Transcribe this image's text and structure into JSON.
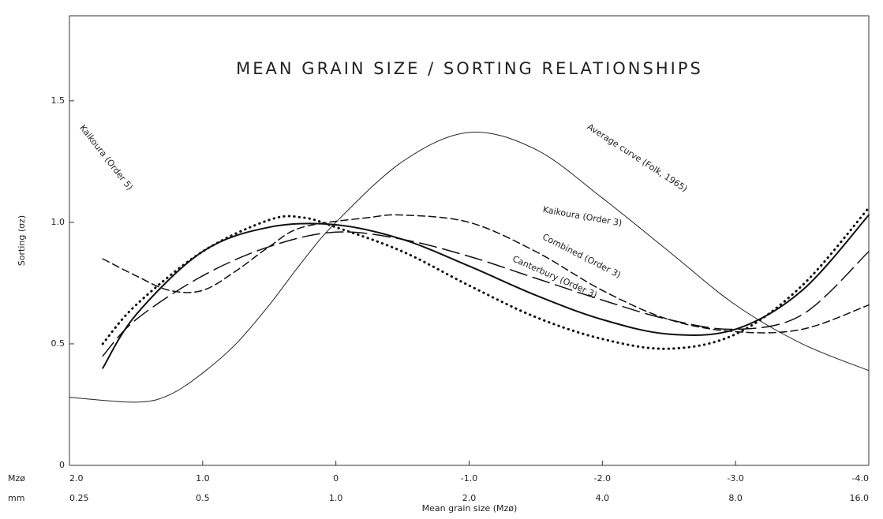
{
  "chart_data": {
    "type": "line",
    "title": "MEAN GRAIN SIZE / SORTING RELATIONSHIPS",
    "xlabel": "Mean grain size (Mzø)",
    "ylabel": "Sorting (σz)",
    "x_row_label": "Mzø",
    "mm_row_label": "mm",
    "mm_labels": [
      "0.25",
      "0.5",
      "1.0",
      "2.0",
      "4.0",
      "8.0",
      "16.0"
    ],
    "xlim": [
      2.0,
      -4.0
    ],
    "xticks": [
      {
        "value": 2,
        "label": "2.0"
      },
      {
        "value": 1,
        "label": "1.0"
      },
      0,
      {
        "value": -1,
        "label": "-1.0"
      },
      {
        "value": -2,
        "label": "-2.0"
      },
      {
        "value": -3,
        "label": "-3.0"
      },
      {
        "value": -4,
        "label": "-4.0"
      }
    ],
    "ylim": [
      0,
      1.85
    ],
    "yticks": [
      0,
      {
        "value": 0.5,
        "label": "0.5"
      },
      {
        "value": 1,
        "label": "1.0"
      },
      {
        "value": 1.5,
        "label": "1.5"
      }
    ],
    "grid": false,
    "series": [
      {
        "name": "Average curve (Folk, 1965)",
        "color": "#222",
        "style": "solid",
        "width": 1,
        "x": [
          2.0,
          1.5,
          1.25,
          1.0,
          0.75,
          0.5,
          0.25,
          0,
          -0.5,
          -1.0,
          -1.5,
          -2.0,
          -2.5,
          -3.0,
          -3.5,
          -4.0
        ],
        "values": [
          0.28,
          0.26,
          0.29,
          0.38,
          0.5,
          0.66,
          0.84,
          1.0,
          1.25,
          1.37,
          1.3,
          1.1,
          0.88,
          0.66,
          0.5,
          0.39
        ]
      },
      {
        "name": "Combined (Order 3)",
        "color": "#111",
        "style": "solid",
        "width": 2,
        "x": [
          1.75,
          1.5,
          1.0,
          0.5,
          0,
          -0.5,
          -1.0,
          -1.5,
          -2.0,
          -2.5,
          -3.0,
          -3.5,
          -4.0
        ],
        "values": [
          0.4,
          0.62,
          0.88,
          0.98,
          0.99,
          0.93,
          0.82,
          0.7,
          0.6,
          0.54,
          0.56,
          0.72,
          1.03
        ]
      },
      {
        "name": "Canterbury (Order 3)",
        "color": "#111",
        "style": "dotted",
        "width": 3,
        "x": [
          1.75,
          1.5,
          1.0,
          0.5,
          0.25,
          0,
          -0.5,
          -1.0,
          -1.5,
          -2.0,
          -2.5,
          -3.0,
          -3.5,
          -4.0
        ],
        "values": [
          0.5,
          0.66,
          0.88,
          1.01,
          1.02,
          0.98,
          0.88,
          0.74,
          0.61,
          0.52,
          0.48,
          0.54,
          0.74,
          1.06
        ]
      },
      {
        "name": "Kaikoura (Order 3)",
        "color": "#111",
        "style": "longdash",
        "width": 1.5,
        "x": [
          1.75,
          1.5,
          1.0,
          0.5,
          0,
          -0.5,
          -1.0,
          -1.5,
          -2.0,
          -2.5,
          -3.0,
          -3.5,
          -4.0
        ],
        "values": [
          0.45,
          0.6,
          0.78,
          0.9,
          0.96,
          0.93,
          0.86,
          0.77,
          0.68,
          0.6,
          0.56,
          0.62,
          0.88
        ]
      },
      {
        "name": "Kaikoura (Order 5)",
        "color": "#111",
        "style": "dashed",
        "width": 1.5,
        "x": [
          1.75,
          1.5,
          1.25,
          1.0,
          0.75,
          0.5,
          0.25,
          -0.25,
          -0.5,
          -1.0,
          -1.5,
          -2.0,
          -2.5,
          -3.0,
          -3.5,
          -4.0
        ],
        "values": [
          0.85,
          0.78,
          0.72,
          0.72,
          0.8,
          0.9,
          0.98,
          1.02,
          1.03,
          1.0,
          0.88,
          0.72,
          0.6,
          0.55,
          0.56,
          0.66
        ]
      }
    ]
  }
}
